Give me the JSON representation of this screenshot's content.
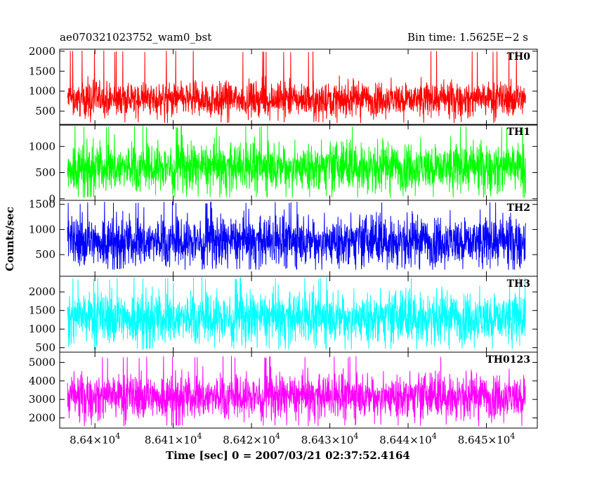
{
  "header": {
    "source_name": "ae070321023752_wam0_bst",
    "bin_time": "Bin time: 1.5625E−2 s"
  },
  "chart_data": {
    "type": "line",
    "xlabel": "Time [sec] 0 = 2007/03/21 02:37:52.4164",
    "ylabel": "Counts/sec",
    "xlim": [
      86395.5,
      86456.5
    ],
    "x_range_data": [
      86396.5,
      86455.0
    ],
    "x_ticks": [
      86400,
      86410,
      86420,
      86430,
      86440,
      86450
    ],
    "x_tick_labels": [
      {
        "mant": "8.64",
        "exp": "4"
      },
      {
        "mant": "8.641",
        "exp": "4"
      },
      {
        "mant": "8.642",
        "exp": "4"
      },
      {
        "mant": "8.643",
        "exp": "4"
      },
      {
        "mant": "8.644",
        "exp": "4"
      },
      {
        "mant": "8.645",
        "exp": "4"
      }
    ],
    "panels": [
      {
        "name": "TH0",
        "color": "#ff0000",
        "ylim": [
          150,
          2050
        ],
        "yticks": [
          500,
          1000,
          1500,
          2000
        ],
        "mean": 800,
        "spread": 450,
        "min": 200,
        "max": 2020
      },
      {
        "name": "TH1",
        "color": "#00ff00",
        "ylim": [
          -30,
          1420
        ],
        "yticks": [
          0,
          500,
          1000
        ],
        "mean": 600,
        "spread": 480,
        "min": 20,
        "max": 1400
      },
      {
        "name": "TH2",
        "color": "#0000ff",
        "ylim": [
          70,
          1580
        ],
        "yticks": [
          500,
          1000,
          1500
        ],
        "mean": 760,
        "spread": 520,
        "min": 200,
        "max": 1560
      },
      {
        "name": "TH3",
        "color": "#00ffff",
        "ylim": [
          380,
          2420
        ],
        "yticks": [
          500,
          1000,
          1500,
          2000
        ],
        "mean": 1300,
        "spread": 720,
        "min": 450,
        "max": 2400
      },
      {
        "name": "TH0123",
        "color": "#ff00ff",
        "ylim": [
          1450,
          5550
        ],
        "yticks": [
          2000,
          3000,
          4000,
          5000
        ],
        "mean": 3150,
        "spread": 1250,
        "min": 1550,
        "max": 5350
      }
    ],
    "grid": false
  }
}
